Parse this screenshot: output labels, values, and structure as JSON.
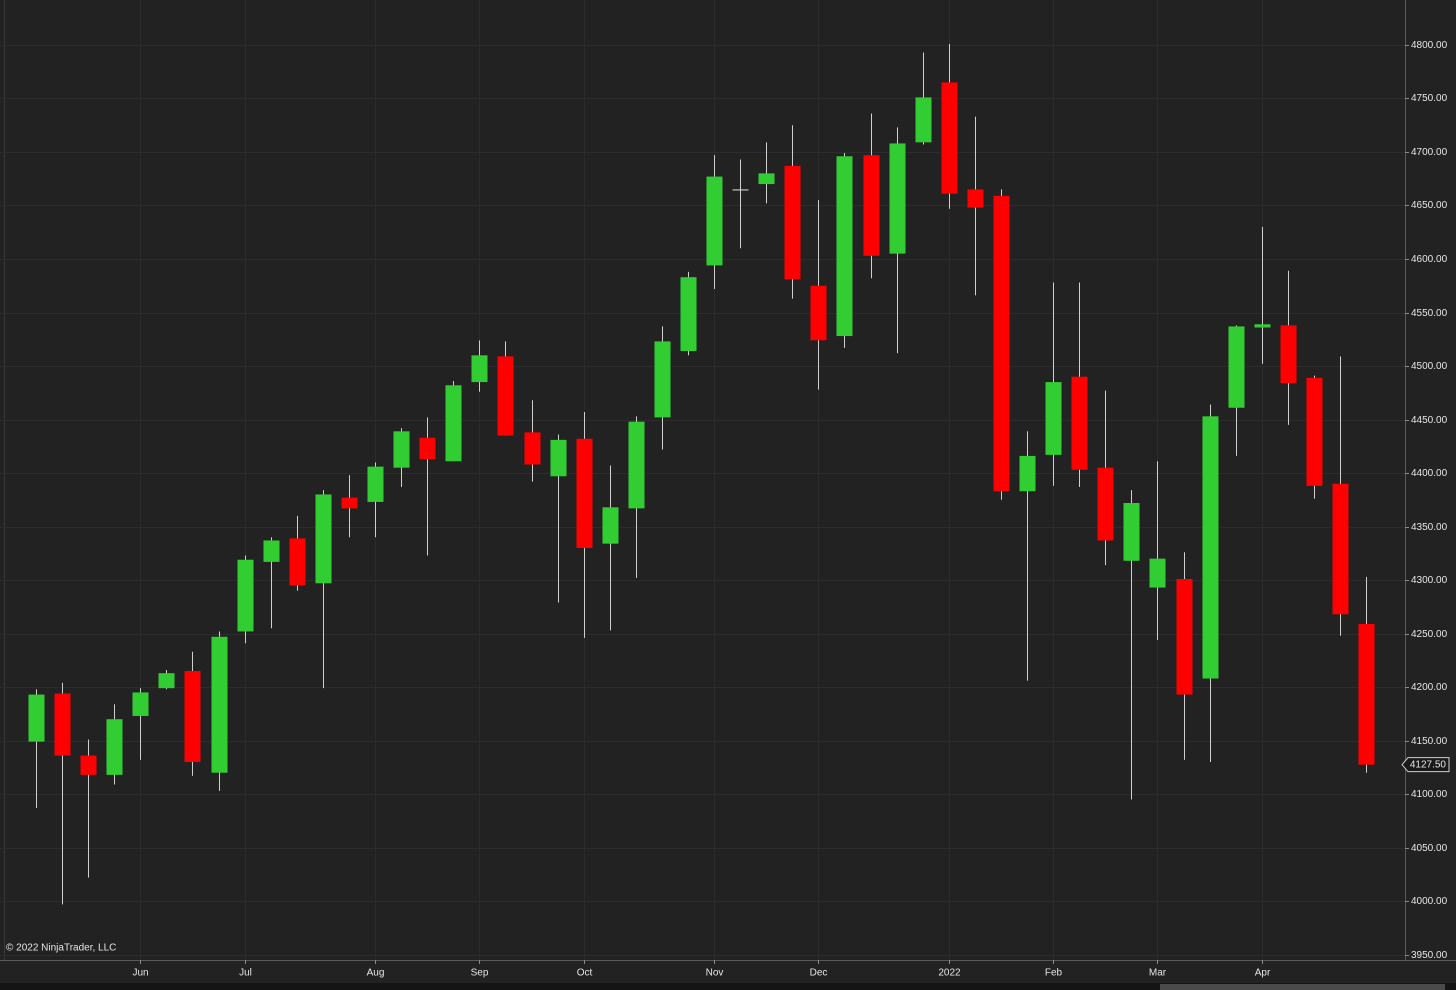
{
  "chart_data": {
    "type": "candlestick",
    "copyright": "© 2022 NinjaTrader, LLC",
    "categories": [
      null,
      null,
      null,
      null,
      "Jun",
      null,
      null,
      null,
      "Jul",
      null,
      null,
      null,
      null,
      "Aug",
      null,
      null,
      null,
      "Sep",
      null,
      null,
      null,
      "Oct",
      null,
      null,
      null,
      null,
      "Nov",
      null,
      null,
      null,
      "Dec",
      null,
      null,
      null,
      null,
      "2022",
      null,
      null,
      null,
      "Feb",
      null,
      null,
      null,
      "Mar",
      null,
      null,
      null,
      "Apr",
      null,
      null,
      null,
      null
    ],
    "open": [
      4149,
      4194,
      4136,
      4118,
      4173,
      4199,
      4215,
      4120,
      4252,
      4317,
      4339,
      4297,
      4377,
      4373,
      4405,
      4433,
      4411,
      4485,
      4509,
      4438,
      4397,
      4432,
      4334,
      4367,
      4452,
      4514,
      4594,
      4665,
      4670,
      4687,
      4575,
      4528,
      4697,
      4605,
      4709,
      4765,
      4665,
      4659,
      4383,
      4417,
      4490,
      4405,
      4318,
      4293,
      4301,
      4208,
      4461,
      4536,
      4538,
      4489,
      4390,
      4259
    ],
    "high": [
      4198,
      4204,
      4151,
      4184,
      4199,
      4216,
      4233,
      4252,
      4323,
      4340,
      4360,
      4384,
      4398,
      4410,
      4442,
      4452,
      4486,
      4524,
      4523,
      4468,
      4436,
      4457,
      4407,
      4453,
      4537,
      4588,
      4697,
      4693,
      4709,
      4725,
      4655,
      4699,
      4736,
      4723,
      4793,
      4801,
      4733,
      4665,
      4439,
      4578,
      4578,
      4477,
      4384,
      4411,
      4326,
      4464,
      4538,
      4630,
      4589,
      4491,
      4509,
      4303
    ],
    "low": [
      4087,
      3997,
      4022,
      4109,
      4132,
      4198,
      4117,
      4103,
      4241,
      4255,
      4290,
      4199,
      4340,
      4340,
      4387,
      4323,
      4411,
      4476,
      4435,
      4392,
      4279,
      4246,
      4253,
      4302,
      4422,
      4510,
      4572,
      4610,
      4652,
      4563,
      4478,
      4517,
      4582,
      4512,
      4707,
      4647,
      4566,
      4375,
      4206,
      4388,
      4387,
      4314,
      4095,
      4244,
      4132,
      4130,
      4416,
      4502,
      4445,
      4376,
      4248,
      4120
    ],
    "close": [
      4193,
      4136,
      4118,
      4170,
      4195,
      4213,
      4130,
      4247,
      4319,
      4337,
      4295,
      4380,
      4367,
      4406,
      4439,
      4413,
      4482,
      4510,
      4435,
      4408,
      4431,
      4330,
      4368,
      4448,
      4523,
      4583,
      4677,
      4665,
      4680,
      4581,
      4524,
      4696,
      4603,
      4708,
      4751,
      4661,
      4648,
      4383,
      4416,
      4485,
      4403,
      4337,
      4372,
      4320,
      4193,
      4453,
      4537,
      4539,
      4484,
      4388,
      4268,
      4127.5
    ],
    "up_color": "#32cd32",
    "down_color": "#ff0000",
    "ylim": [
      3945,
      4842
    ],
    "yticks": [
      {
        "value": 3950,
        "label": "3950.00"
      },
      {
        "value": 4000,
        "label": "4000.00"
      },
      {
        "value": 4050,
        "label": "4050.00"
      },
      {
        "value": 4100,
        "label": "4100.00"
      },
      {
        "value": 4150,
        "label": "4150.00"
      },
      {
        "value": 4200,
        "label": "4200.00"
      },
      {
        "value": 4250,
        "label": "4250.00"
      },
      {
        "value": 4300,
        "label": "4300.00"
      },
      {
        "value": 4350,
        "label": "4350.00"
      },
      {
        "value": 4400,
        "label": "4400.00"
      },
      {
        "value": 4450,
        "label": "4450.00"
      },
      {
        "value": 4500,
        "label": "4500.00"
      },
      {
        "value": 4550,
        "label": "4550.00"
      },
      {
        "value": 4600,
        "label": "4600.00"
      },
      {
        "value": 4650,
        "label": "4650.00"
      },
      {
        "value": 4700,
        "label": "4700.00"
      },
      {
        "value": 4750,
        "label": "4750.00"
      },
      {
        "value": 4800,
        "label": "4800.00"
      }
    ],
    "last_price": {
      "value": 4127.5,
      "label": "4127.50"
    },
    "grid": true
  }
}
